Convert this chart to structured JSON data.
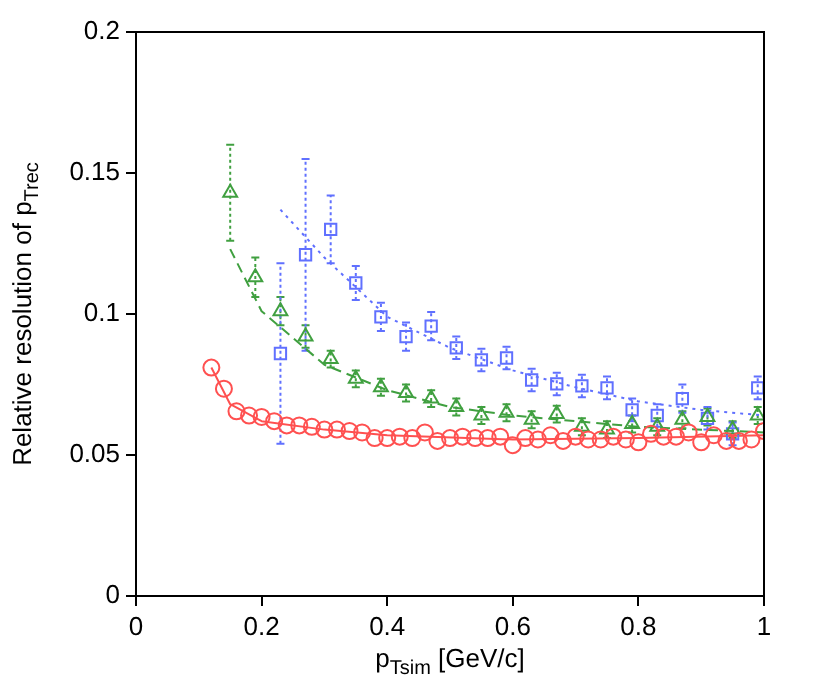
{
  "chart_data": {
    "type": "scatter",
    "xlabel": "p$_{Tsim}$ [GeV/c]",
    "ylabel": "Relative resolution of p$_{Trec}$",
    "xlim": [
      0,
      1
    ],
    "xticks": [
      0,
      0.2,
      0.4,
      0.6,
      0.8,
      1
    ],
    "ylim": [
      0,
      0.2
    ],
    "yticks": [
      0,
      0.05,
      0.1,
      0.15,
      0.2
    ],
    "grid": false,
    "legend": false,
    "series": [
      {
        "marker": "circle",
        "color": "#ff5050",
        "x": [
          0.12,
          0.14,
          0.16,
          0.18,
          0.2,
          0.22,
          0.24,
          0.26,
          0.28,
          0.3,
          0.32,
          0.34,
          0.36,
          0.38,
          0.4,
          0.42,
          0.44,
          0.46,
          0.48,
          0.5,
          0.52,
          0.54,
          0.56,
          0.58,
          0.6,
          0.62,
          0.64,
          0.66,
          0.68,
          0.7,
          0.72,
          0.74,
          0.76,
          0.78,
          0.8,
          0.82,
          0.84,
          0.86,
          0.88,
          0.9,
          0.92,
          0.94,
          0.96,
          0.98,
          1
        ],
        "values": [
          0.081,
          0.0735,
          0.0655,
          0.064,
          0.0635,
          0.062,
          0.0605,
          0.0605,
          0.06,
          0.059,
          0.059,
          0.0585,
          0.058,
          0.056,
          0.056,
          0.0565,
          0.056,
          0.058,
          0.055,
          0.056,
          0.0565,
          0.056,
          0.056,
          0.0565,
          0.0535,
          0.056,
          0.0555,
          0.057,
          0.055,
          0.0565,
          0.0555,
          0.0555,
          0.0565,
          0.0555,
          0.0545,
          0.0575,
          0.0565,
          0.0565,
          0.058,
          0.0545,
          0.057,
          0.055,
          0.055,
          0.0555,
          0.0585
        ]
      },
      {
        "marker": "triangle",
        "color": "#40a040",
        "x": [
          0.15,
          0.19,
          0.23,
          0.27,
          0.31,
          0.35,
          0.39,
          0.43,
          0.47,
          0.51,
          0.55,
          0.59,
          0.63,
          0.67,
          0.71,
          0.75,
          0.79,
          0.83,
          0.87,
          0.91,
          0.95,
          0.99
        ],
        "values": [
          0.143,
          0.113,
          0.101,
          0.092,
          0.084,
          0.077,
          0.074,
          0.072,
          0.07,
          0.067,
          0.064,
          0.065,
          0.0625,
          0.0645,
          0.06,
          0.059,
          0.061,
          0.06,
          0.0625,
          0.0635,
          0.059,
          0.064
        ],
        "errors": [
          0.017,
          0.007,
          0.005,
          0.004,
          0.003,
          0.003,
          0.003,
          0.003,
          0.003,
          0.003,
          0.003,
          0.003,
          0.003,
          0.003,
          0.003,
          0.003,
          0.003,
          0.003,
          0.003,
          0.003,
          0.003,
          0.003
        ]
      },
      {
        "marker": "square",
        "color": "#6070ff",
        "x": [
          0.23,
          0.27,
          0.31,
          0.35,
          0.39,
          0.43,
          0.47,
          0.51,
          0.55,
          0.59,
          0.63,
          0.67,
          0.71,
          0.75,
          0.79,
          0.83,
          0.87,
          0.91,
          0.95,
          0.99
        ],
        "values": [
          0.086,
          0.121,
          0.13,
          0.111,
          0.099,
          0.092,
          0.0957,
          0.088,
          0.0837,
          0.0844,
          0.0766,
          0.0752,
          0.0745,
          0.0738,
          0.066,
          0.064,
          0.07,
          0.063,
          0.0575,
          0.0738
        ],
        "errors": [
          0.032,
          0.034,
          0.012,
          0.006,
          0.005,
          0.005,
          0.005,
          0.004,
          0.004,
          0.004,
          0.004,
          0.004,
          0.004,
          0.004,
          0.004,
          0.004,
          0.005,
          0.004,
          0.004,
          0.004
        ]
      },
      {
        "type": "line",
        "marker": "none",
        "line_style": "solid",
        "color": "#ff5050",
        "x": [
          0.12,
          0.15,
          0.2,
          0.3,
          0.4,
          0.6,
          0.8,
          1
        ],
        "values": [
          0.081,
          0.068,
          0.062,
          0.059,
          0.057,
          0.0555,
          0.056,
          0.057
        ]
      },
      {
        "type": "line",
        "marker": "none",
        "line_style": "dashed",
        "color": "#40a040",
        "x": [
          0.15,
          0.2,
          0.3,
          0.4,
          0.5,
          0.6,
          0.8,
          1
        ],
        "values": [
          0.123,
          0.101,
          0.082,
          0.073,
          0.067,
          0.064,
          0.06,
          0.058
        ]
      },
      {
        "type": "line",
        "marker": "none",
        "line_style": "dotted",
        "color": "#6070ff",
        "x": [
          0.23,
          0.3,
          0.4,
          0.5,
          0.6,
          0.7,
          0.8,
          0.9,
          1
        ],
        "values": [
          0.137,
          0.12,
          0.099,
          0.088,
          0.08,
          0.074,
          0.069,
          0.066,
          0.064
        ]
      }
    ]
  }
}
